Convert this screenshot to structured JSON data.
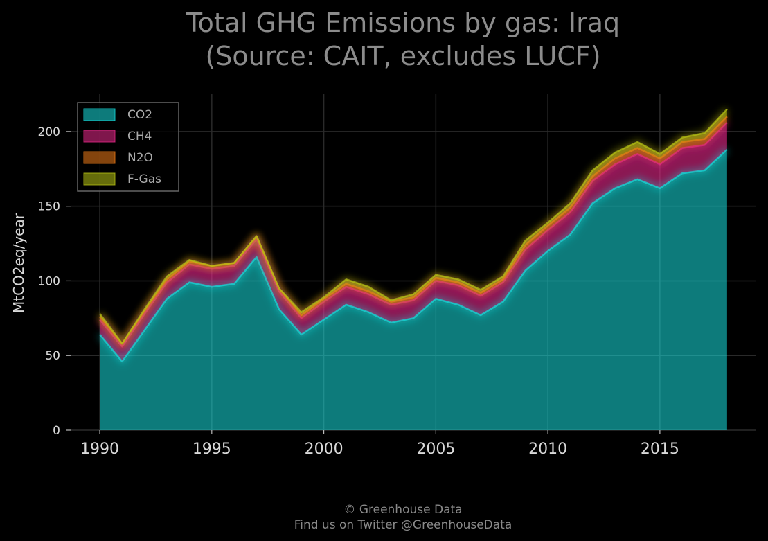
{
  "chart_data": {
    "type": "area",
    "stacked": true,
    "title_lines": [
      "Total GHG Emissions by gas: Iraq",
      "(Source: CAIT, excludes LUCF)"
    ],
    "xlabel": "",
    "ylabel": "MtCO2eq/year",
    "xlim": [
      1988.7,
      2019.3
    ],
    "ylim": [
      0,
      225
    ],
    "x_ticks": [
      1990,
      1995,
      2000,
      2005,
      2010,
      2015
    ],
    "y_ticks": [
      0,
      50,
      100,
      150,
      200
    ],
    "grid": true,
    "legend_position": "top-left",
    "x": [
      1990,
      1991,
      1992,
      1993,
      1994,
      1995,
      1996,
      1997,
      1998,
      1999,
      2000,
      2001,
      2002,
      2003,
      2004,
      2005,
      2006,
      2007,
      2008,
      2009,
      2010,
      2011,
      2012,
      2013,
      2014,
      2015,
      2016,
      2017,
      2018
    ],
    "series": [
      {
        "name": "CO2",
        "color": "#17e0e0",
        "values": [
          64,
          46,
          67,
          88,
          99,
          96,
          98,
          116,
          81,
          64,
          74,
          84,
          79,
          72,
          75,
          88,
          84,
          77,
          86,
          107,
          120,
          131,
          152,
          162,
          168,
          162,
          172,
          174,
          188
        ]
      },
      {
        "name": "CH4",
        "color": "#e8288a",
        "values": [
          10,
          10,
          11,
          11,
          12,
          12,
          12,
          12,
          12,
          11,
          12,
          12,
          12,
          12,
          12,
          12,
          13,
          13,
          13,
          14,
          14,
          15,
          15,
          16,
          17,
          16,
          17,
          17,
          18
        ]
      },
      {
        "name": "N2O",
        "color": "#f07c17",
        "values": [
          2,
          2,
          2,
          2,
          2,
          2,
          2,
          2,
          2,
          2,
          2,
          2,
          2,
          2,
          2,
          2,
          2,
          2,
          2,
          3,
          3,
          3,
          3,
          4,
          4,
          4,
          4,
          4,
          4
        ]
      },
      {
        "name": "F-Gas",
        "color": "#b8c414",
        "values": [
          2,
          0,
          1,
          2,
          1,
          0,
          0,
          0,
          0,
          2,
          1,
          3,
          3,
          1,
          2,
          2,
          2,
          2,
          2,
          3,
          2,
          3,
          4,
          4,
          4,
          3,
          3,
          4,
          5
        ]
      }
    ]
  },
  "credits": {
    "line1": "© Greenhouse Data",
    "line2": "Find us on Twitter @GreenhouseData"
  }
}
